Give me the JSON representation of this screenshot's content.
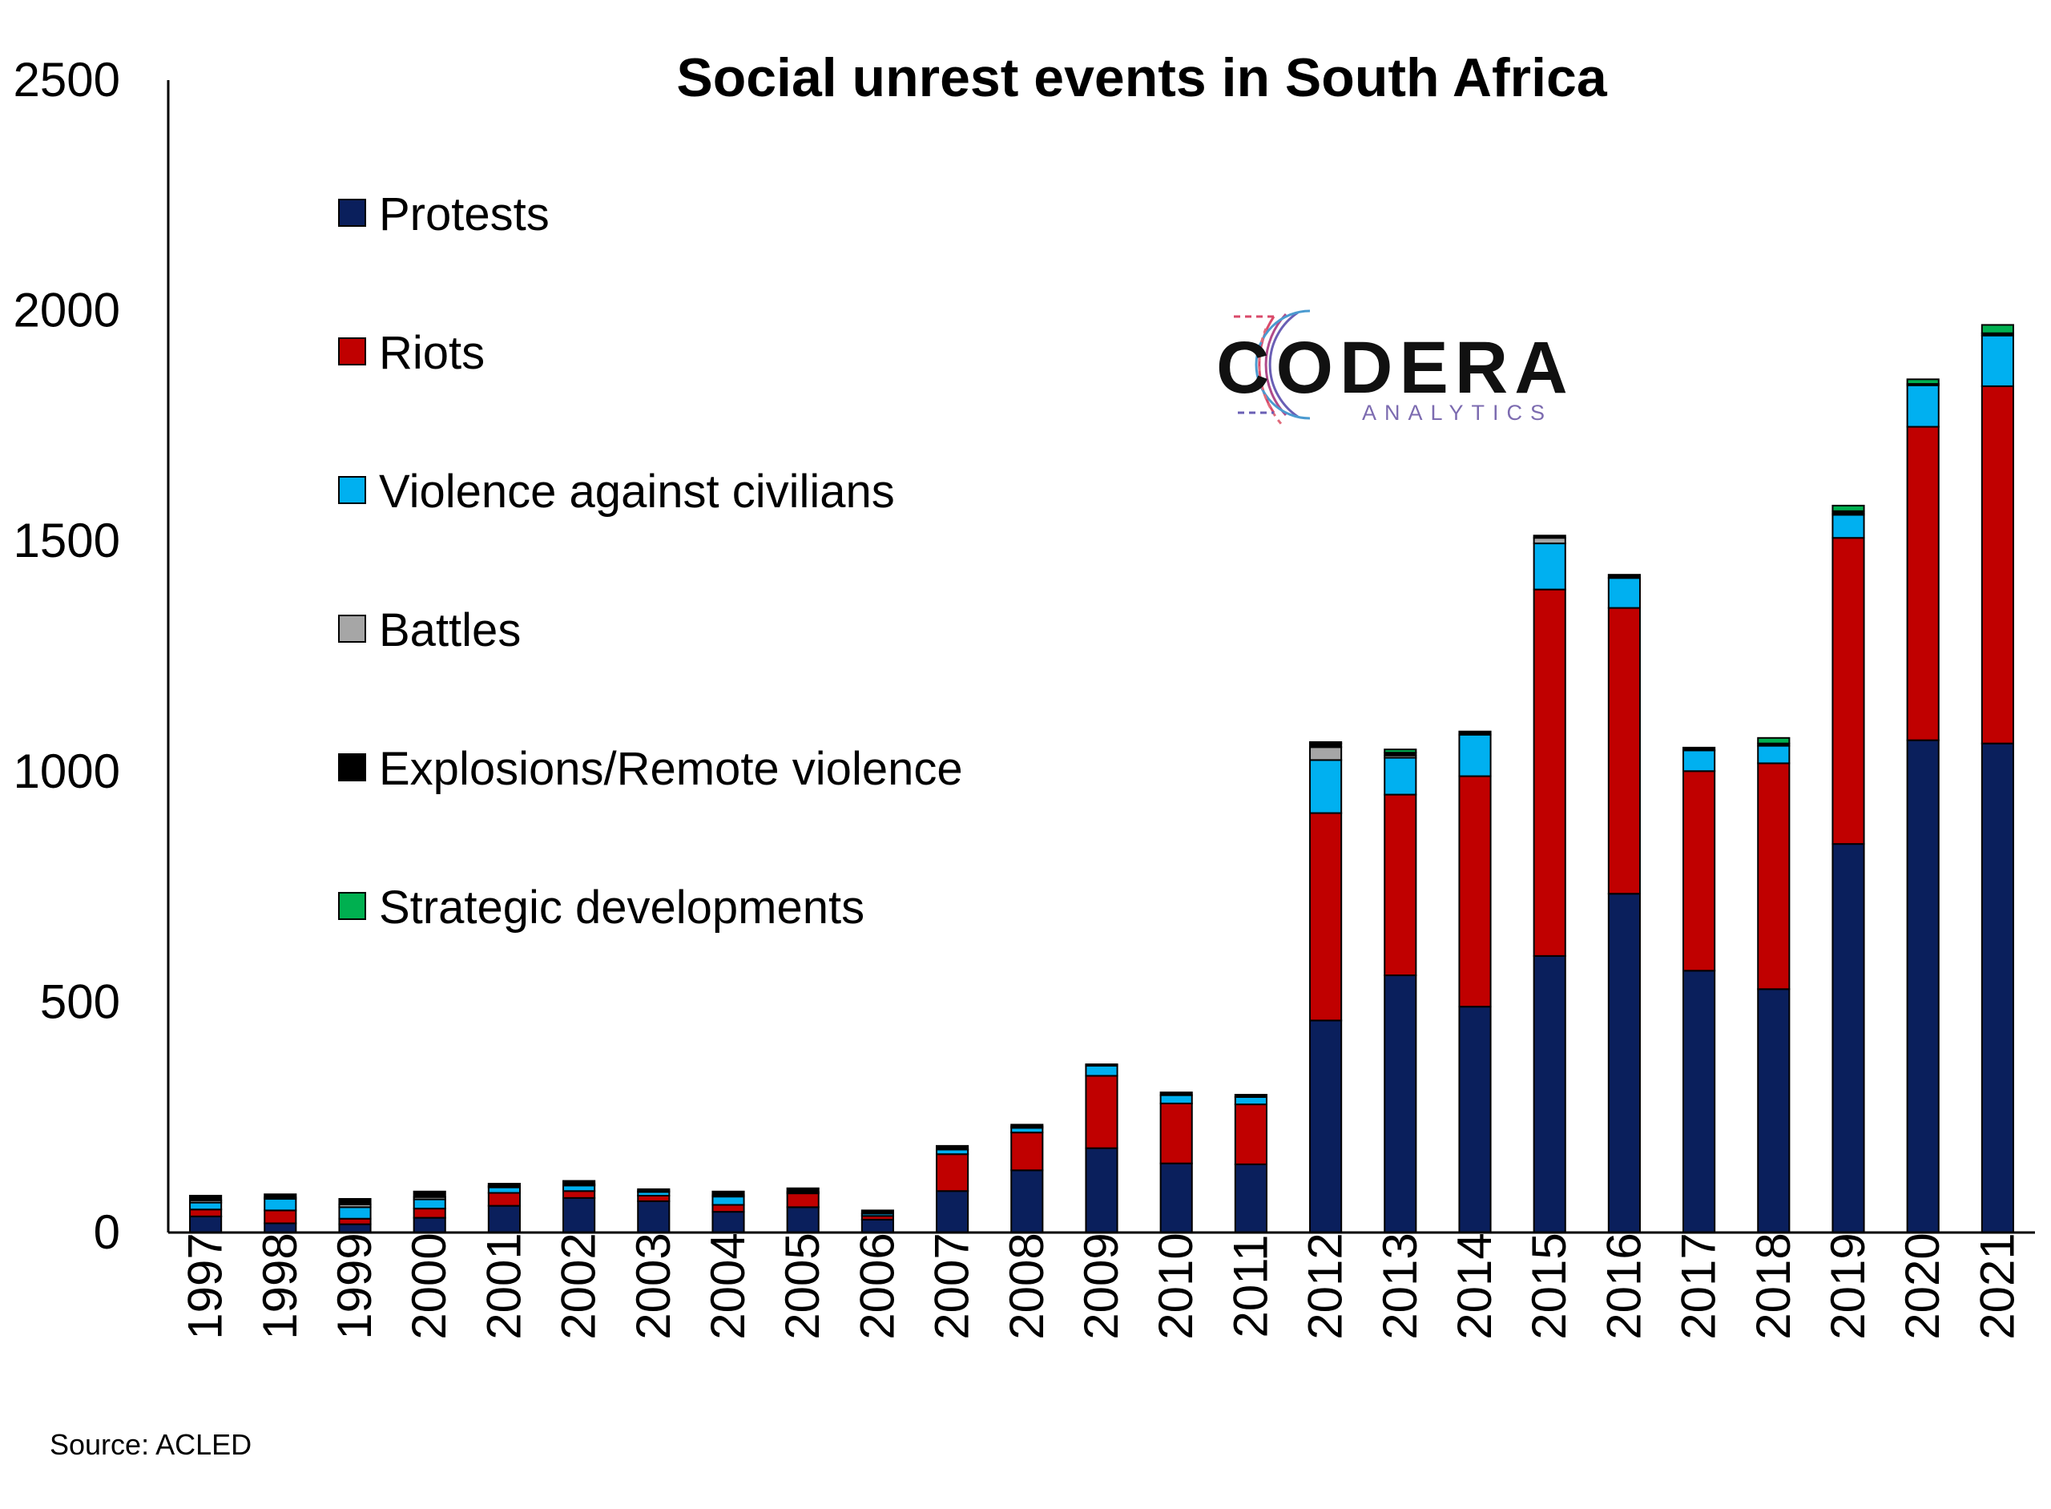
{
  "chart_data": {
    "type": "bar",
    "stacked": true,
    "title": "Social unrest events in South Africa",
    "xlabel": "",
    "ylabel": "",
    "ylim": [
      0,
      2500
    ],
    "yticks": [
      "0",
      "500",
      "1000",
      "1500",
      "2000",
      "2500"
    ],
    "grid": false,
    "legend_position": "left",
    "categories": [
      "1997",
      "1998",
      "1999",
      "2000",
      "2001",
      "2002",
      "2003",
      "2004",
      "2005",
      "2006",
      "2007",
      "2008",
      "2009",
      "2010",
      "2011",
      "2012",
      "2013",
      "2014",
      "2015",
      "2016",
      "2017",
      "2018",
      "2019",
      "2020",
      "2021"
    ],
    "series": [
      {
        "name": "Protests",
        "color": "#0a1f5c",
        "values": [
          35,
          20,
          18,
          32,
          58,
          75,
          68,
          45,
          55,
          28,
          90,
          135,
          183,
          150,
          148,
          460,
          558,
          490,
          600,
          735,
          568,
          528,
          843,
          1068,
          1061
        ]
      },
      {
        "name": "Riots",
        "color": "#c00000",
        "values": [
          15,
          28,
          12,
          20,
          28,
          15,
          12,
          15,
          30,
          8,
          80,
          82,
          157,
          130,
          130,
          450,
          392,
          500,
          795,
          620,
          433,
          490,
          664,
          680,
          775
        ]
      },
      {
        "name": "Violence against civilians",
        "color": "#00b0f0",
        "values": [
          15,
          25,
          25,
          20,
          12,
          12,
          8,
          18,
          3,
          5,
          10,
          10,
          22,
          18,
          16,
          115,
          80,
          90,
          100,
          65,
          45,
          38,
          50,
          90,
          110
        ]
      },
      {
        "name": "Battles",
        "color": "#a6a6a6",
        "values": [
          5,
          3,
          6,
          5,
          3,
          3,
          2,
          3,
          0,
          0,
          0,
          3,
          0,
          0,
          0,
          28,
          5,
          0,
          12,
          0,
          0,
          0,
          3,
          0,
          0
        ]
      },
      {
        "name": "Explosions/Remote violence",
        "color": "#000000",
        "values": [
          10,
          7,
          12,
          12,
          5,
          7,
          4,
          8,
          8,
          7,
          8,
          4,
          3,
          6,
          5,
          8,
          6,
          7,
          5,
          7,
          6,
          5,
          5,
          3,
          5
        ]
      },
      {
        "name": "Strategic developments",
        "color": "#00b050",
        "values": [
          0,
          0,
          0,
          0,
          0,
          0,
          0,
          0,
          0,
          0,
          0,
          0,
          0,
          0,
          0,
          3,
          7,
          0,
          0,
          0,
          0,
          12,
          12,
          10,
          18
        ]
      }
    ],
    "source": "Source: ACLED"
  },
  "logo": {
    "main": "CODERA",
    "sub": "ANALYTICS"
  }
}
